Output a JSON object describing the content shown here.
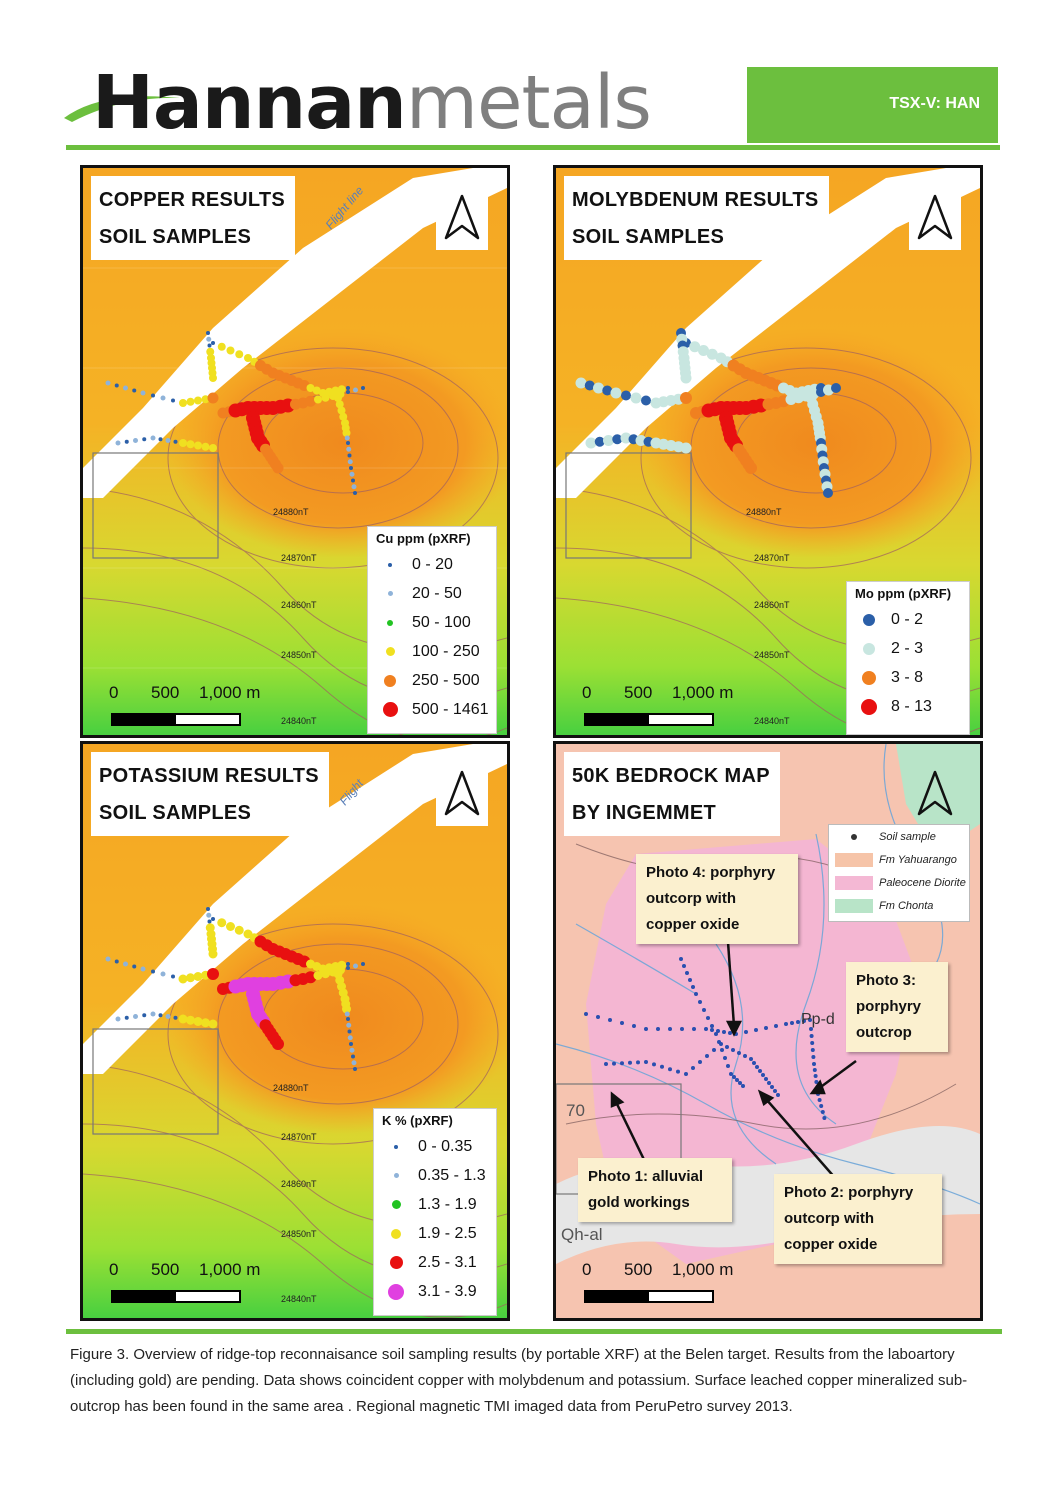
{
  "header": {
    "logo_bold": "Hannan",
    "logo_light": "metals",
    "ticker": "TSX-V: HAN"
  },
  "panels": {
    "copper": {
      "title_line1": "COPPER RESULTS",
      "title_line2": "SOIL SAMPLES",
      "flight_label": "Flight line",
      "legend_title": "Cu ppm (pXRF)",
      "legend": [
        {
          "label": "0 - 20",
          "color": "#2b5fa8"
        },
        {
          "label": "20 - 50",
          "color": "#8fb3d9"
        },
        {
          "label": "50 - 100",
          "color": "#22c322"
        },
        {
          "label": "100 - 250",
          "color": "#f0e020"
        },
        {
          "label": "250 - 500",
          "color": "#f08020"
        },
        {
          "label": "500 - 1461",
          "color": "#e81010"
        }
      ],
      "contours": [
        "24880nT",
        "24870nT",
        "24860nT",
        "24850nT",
        "24840nT"
      ]
    },
    "molybdenum": {
      "title_line1": "MOLYBDENUM  RESULTS",
      "title_line2": "SOIL SAMPLES",
      "legend_title": "Mo ppm (pXRF)",
      "legend": [
        {
          "label": "0 - 2",
          "color": "#2b5fa8"
        },
        {
          "label": "2 - 3",
          "color": "#c8e6e0"
        },
        {
          "label": "3 - 8",
          "color": "#f08020"
        },
        {
          "label": "8 - 13",
          "color": "#e81010"
        }
      ],
      "contours": [
        "24880nT",
        "24870nT",
        "24860nT",
        "24850nT",
        "24840nT"
      ]
    },
    "potassium": {
      "title_line1": "POTASSIUM RESULTS",
      "title_line2": "SOIL SAMPLES",
      "flight_label": "Flight",
      "legend_title": "K % (pXRF)",
      "legend": [
        {
          "label": "0 - 0.35",
          "color": "#2b5fa8"
        },
        {
          "label": "0.35 - 1.3",
          "color": "#8fb3d9"
        },
        {
          "label": "1.3 - 1.9",
          "color": "#22c322"
        },
        {
          "label": "1.9 - 2.5",
          "color": "#f0e020"
        },
        {
          "label": "2.5 - 3.1",
          "color": "#e81010"
        },
        {
          "label": "3.1 - 3.9",
          "color": "#e040e0"
        }
      ],
      "contours": [
        "24880nT",
        "24870nT",
        "24860nT",
        "24850nT",
        "24840nT"
      ]
    },
    "bedrock": {
      "title_line1": "50K BEDROCK MAP",
      "title_line2": "BY INGEMMET",
      "legend": [
        {
          "label": "Soil sample",
          "color": "#333333"
        },
        {
          "label": "Fm Yahuarango",
          "color": "#f6c4a8"
        },
        {
          "label": "Paleocene Diorite",
          "color": "#f4b8d4"
        },
        {
          "label": "Fm Chonta",
          "color": "#b8e4c8"
        }
      ],
      "map_labels": [
        "Pp-d",
        "70",
        "Qh-al"
      ],
      "callouts": {
        "photo4": [
          "Photo 4:  porphyry",
          "outcorp with",
          "copper oxide"
        ],
        "photo3": [
          "Photo 3:",
          "porphyry",
          "outcrop"
        ],
        "photo1": [
          "Photo 1:  alluvial",
          "gold workings"
        ],
        "photo2": [
          "Photo 2:  porphyry",
          "outcorp with",
          "copper oxide"
        ]
      }
    }
  },
  "scale": {
    "zero": "0",
    "mid": "500",
    "end": "1,000 m"
  },
  "caption": "Figure 3. Overview of ridge-top reconnaisance soil sampling results (by portable XRF) at the Belen target. Results from the laboartory (including gold) are pending. Data shows coincident copper with molybdenum and potassium. Surface leached copper mineralized sub-outcrop has been found in the same area . Regional magnetic TMI imaged data from PeruPetro survey 2013.",
  "colors": {
    "brand_green": "#6cbf3e",
    "anomaly_orange": "#f08a1e",
    "field_yellow": "#f5a623"
  }
}
